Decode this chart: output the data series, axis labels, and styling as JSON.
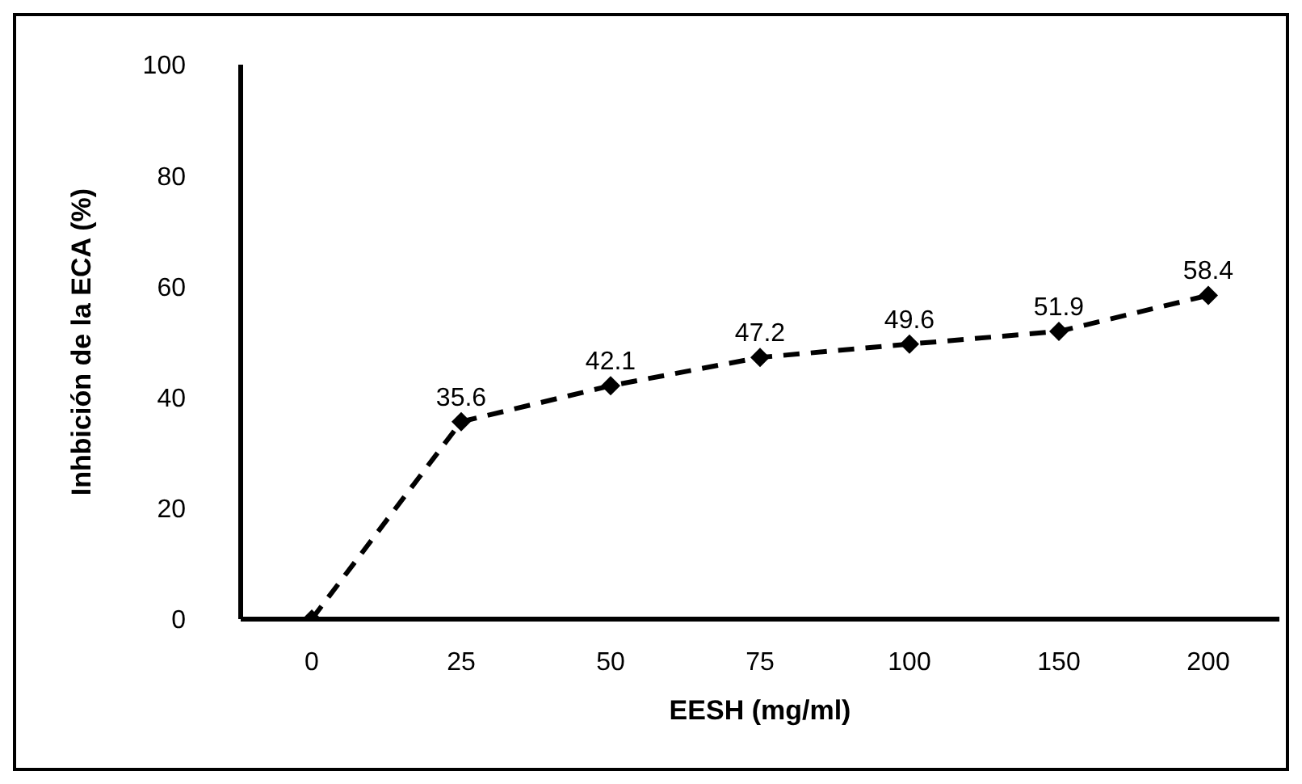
{
  "chart_data": {
    "type": "line",
    "xlabel": "EESH (mg/ml)",
    "ylabel": "Inhbición de la ECA (%)",
    "categories": [
      "0",
      "25",
      "50",
      "75",
      "100",
      "150",
      "200"
    ],
    "series": [
      {
        "color": "#000000",
        "values": [
          0,
          35.6,
          42.1,
          47.2,
          49.6,
          51.9,
          58.4
        ],
        "value_labels": [
          null,
          "35.6",
          "42.1",
          "47.2",
          "49.6",
          "51.9",
          "58.4"
        ]
      }
    ],
    "ylim": [
      0,
      100
    ],
    "yticks": [
      0,
      20,
      40,
      60,
      80,
      100
    ],
    "grid": false,
    "legend": false,
    "marker": "diamond",
    "line_style": "dashed"
  }
}
